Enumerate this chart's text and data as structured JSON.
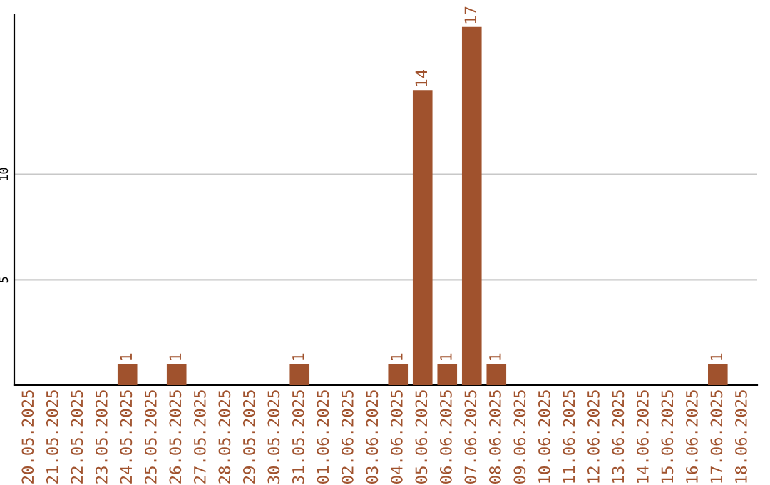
{
  "chart_data": {
    "type": "bar",
    "categories": [
      "20.05.2025",
      "21.05.2025",
      "22.05.2025",
      "23.05.2025",
      "24.05.2025",
      "25.05.2025",
      "26.05.2025",
      "27.05.2025",
      "28.05.2025",
      "29.05.2025",
      "30.05.2025",
      "31.05.2025",
      "01.06.2025",
      "02.06.2025",
      "03.06.2025",
      "04.06.2025",
      "05.06.2025",
      "06.06.2025",
      "07.06.2025",
      "08.06.2025",
      "09.06.2025",
      "10.06.2025",
      "11.06.2025",
      "12.06.2025",
      "13.06.2025",
      "14.06.2025",
      "15.06.2025",
      "16.06.2025",
      "17.06.2025",
      "18.06.2025"
    ],
    "values": [
      0,
      0,
      0,
      0,
      1,
      0,
      1,
      0,
      0,
      0,
      0,
      1,
      0,
      0,
      0,
      1,
      14,
      1,
      17,
      1,
      0,
      0,
      0,
      0,
      0,
      0,
      0,
      0,
      1,
      0
    ],
    "value_labels": [
      null,
      null,
      null,
      null,
      "1",
      null,
      "1",
      null,
      null,
      null,
      null,
      "1",
      null,
      null,
      null,
      "1",
      "14",
      "1",
      "17",
      "1",
      null,
      null,
      null,
      null,
      null,
      null,
      null,
      null,
      "1",
      null
    ],
    "color": "#a0522d",
    "ylim": [
      0,
      17.6
    ],
    "yticks": [
      5,
      10
    ],
    "grid": "y"
  }
}
